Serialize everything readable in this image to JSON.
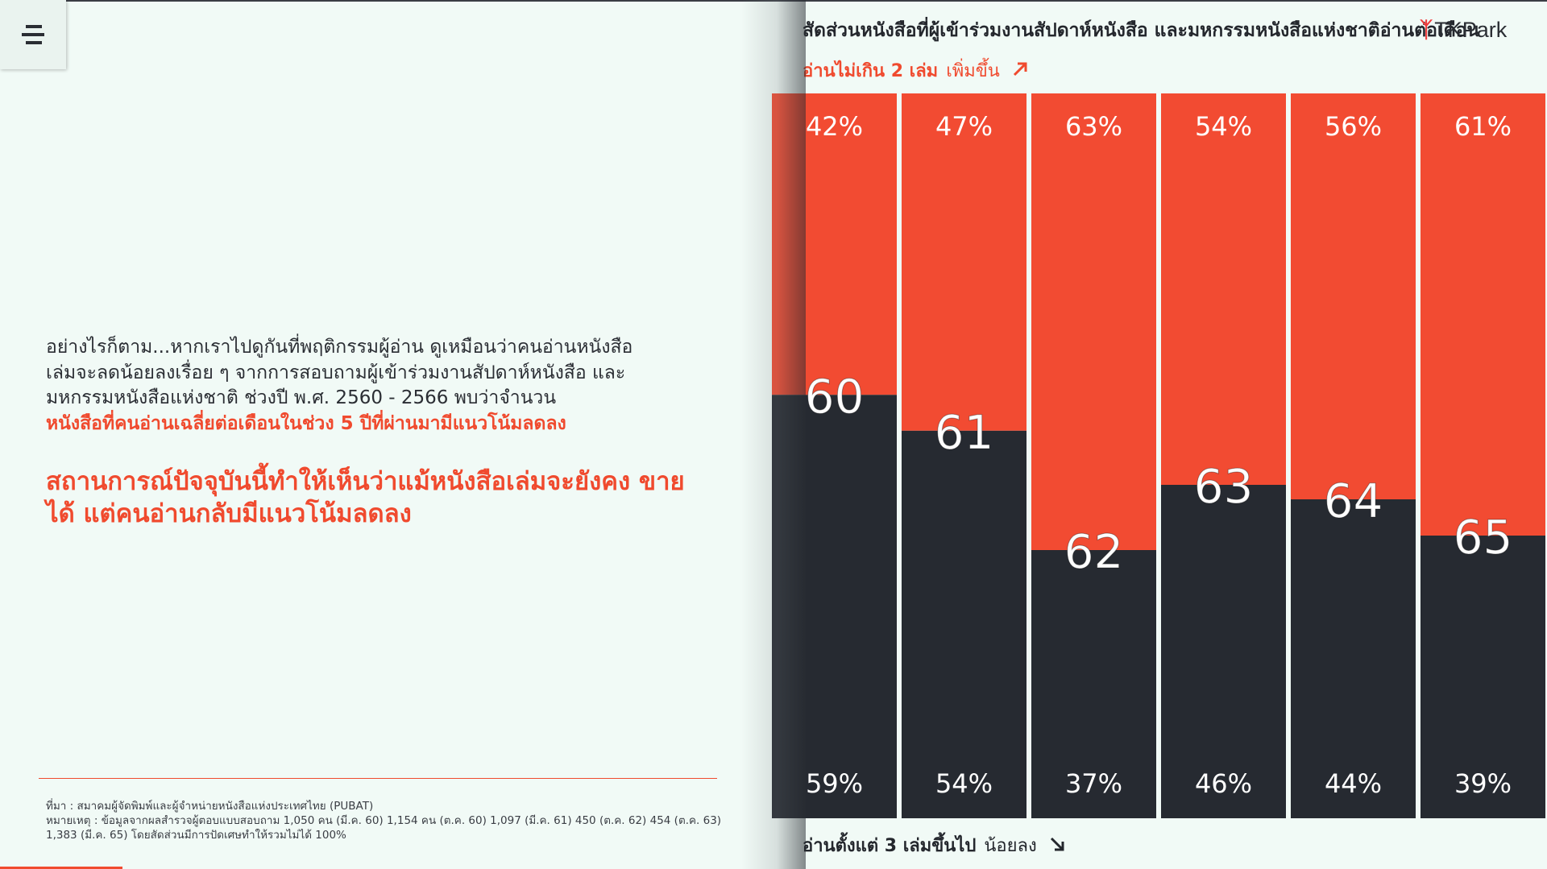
{
  "menu": {
    "icon": "hamburger-menu-icon"
  },
  "left": {
    "paragraph": "อย่างไรก็ตาม...หากเราไปดูกันที่พฤติกรรมผู้อ่าน ดูเหมือนว่าคนอ่านหนังสือ เล่มจะลดน้อยลงเรื่อย ๆ จากการสอบถามผู้เข้าร่วมงานสัปดาห์หนังสือ และมหกรรมหนังสือแห่งชาติ ช่วงปี พ.ศ. 2560 - 2566 พบว่าจำนวน",
    "paragraph_highlight": "หนังสือที่คนอ่านเฉลี่ยต่อเดือนในช่วง 5 ปีที่ผ่านมามีแนวโน้มลดลง",
    "headline": "สถานการณ์ปัจจุบันนี้ทำให้เห็นว่าแม้หนังสือเล่มจะยังคง ขายได้ แต่คนอ่านกลับมีแนวโน้มลดลง",
    "source": "ที่มา : สมาคมผู้จัดพิมพ์และผู้จำหน่ายหนังสือแห่งประเทศไทย (PUBAT)",
    "note": "หมายเหตุ : ข้อมูลจากผลสำรวจผู้ตอบแบบสอบถาม 1,050 คน (มี.ค. 60) 1,154 คน (ต.ค. 60) 1,097 (มี.ค. 61) 450 (ต.ค. 62) 454 (ต.ค. 63) 1,383 (มี.ค. 65) โดยสัดส่วนมีการปัดเศษทำให้รวมไม่ได้ 100%"
  },
  "logo": {
    "text": "TKPark"
  },
  "colors": {
    "upper": "#f24b32",
    "lower": "#262a31",
    "accent": "#f04a2e",
    "background": "#f1faf6"
  },
  "chart_data": {
    "type": "bar",
    "stacked": true,
    "normalized_to": 100,
    "title": "สัดส่วนหนังสือที่ผู้เข้าร่วมงานสัปดาห์หนังสือ และมหกรรมหนังสือแห่งชาติอ่านต่อเดือน",
    "categories": [
      "60",
      "61",
      "62",
      "63",
      "64",
      "65"
    ],
    "series": [
      {
        "name": "อ่านไม่เกิน 2 เล่ม",
        "trend": "เพิ่มขึ้น",
        "trend_icon": "arrow-up-right-icon",
        "values": [
          42,
          47,
          63,
          54,
          56,
          61
        ],
        "labels": [
          "42%",
          "47%",
          "63%",
          "54%",
          "56%",
          "61%"
        ]
      },
      {
        "name": "อ่านตั้งแต่ 3 เล่มขึ้นไป",
        "trend": "น้อยลง",
        "trend_icon": "arrow-down-right-icon",
        "values": [
          59,
          54,
          37,
          46,
          44,
          39
        ],
        "labels": [
          "59%",
          "54%",
          "37%",
          "46%",
          "44%",
          "39%"
        ]
      }
    ],
    "ylim": [
      0,
      100
    ],
    "grid": false,
    "legend_placement": "top and bottom"
  }
}
